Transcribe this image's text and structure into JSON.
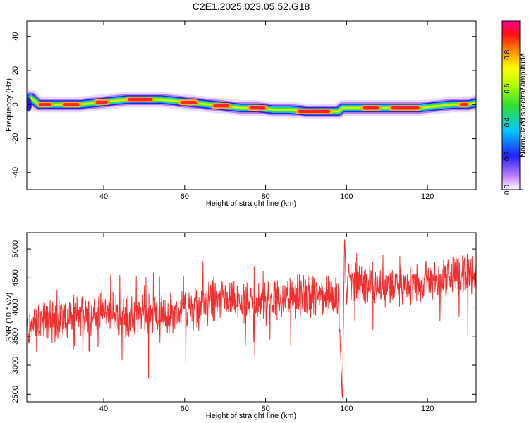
{
  "title": "C2E1.2025.023.05.52.G18",
  "chart_data": [
    {
      "type": "heatmap",
      "xlabel": "Height of straight line (km)",
      "ylabel": "Frequency (Hz)",
      "xlim": [
        21,
        132
      ],
      "ylim": [
        -50,
        49
      ],
      "xticks": [
        40,
        60,
        80,
        100,
        120
      ],
      "yticks": [
        -40,
        -20,
        0,
        20,
        40
      ],
      "colorbar": {
        "label": "Normalized spectral amplitude",
        "range": [
          0,
          1
        ],
        "ticks": [
          "0.0",
          "0.2",
          "0.4",
          "0.6",
          "0.8"
        ]
      },
      "ridge": {
        "x": [
          21,
          22,
          24,
          30,
          34,
          38,
          42,
          46,
          50,
          54,
          58,
          62,
          66,
          70,
          74,
          78,
          82,
          86,
          90,
          94,
          98,
          99,
          102,
          106,
          110,
          114,
          118,
          122,
          126,
          130,
          132
        ],
        "freq": [
          0,
          4,
          0,
          0,
          0,
          1,
          2,
          3,
          3,
          3,
          2,
          1,
          0,
          -1,
          -2,
          -2,
          -3,
          -3,
          -4,
          -4,
          -4,
          -2,
          -2,
          -2,
          -2,
          -2,
          -2,
          -1,
          0,
          0,
          1
        ]
      },
      "grid": false
    },
    {
      "type": "line",
      "xlabel": "Height of straight line (km)",
      "ylabel": "SNR (10 * v/v)",
      "xlim": [
        21,
        132
      ],
      "ylim": [
        2370,
        5280
      ],
      "xticks": [
        40,
        60,
        80,
        100,
        120
      ],
      "yticks": [
        2500,
        3000,
        3500,
        4000,
        4500,
        5000
      ],
      "series": [
        {
          "color": "#f03030",
          "x": [
            21,
            25,
            30,
            35,
            40,
            45,
            50,
            55,
            60,
            65,
            70,
            75,
            80,
            85,
            90,
            95,
            98,
            98.5,
            99,
            99.5,
            100,
            100.5,
            101,
            105,
            110,
            115,
            120,
            125,
            130,
            132
          ],
          "y": [
            3600,
            3750,
            3800,
            3850,
            3900,
            3850,
            3850,
            3870,
            3950,
            4050,
            4100,
            4050,
            4100,
            4150,
            4200,
            4150,
            4250,
            3200,
            2450,
            5200,
            4100,
            4700,
            4400,
            4400,
            4350,
            4350,
            4450,
            4500,
            4600,
            4550
          ]
        }
      ],
      "grid": false
    }
  ]
}
